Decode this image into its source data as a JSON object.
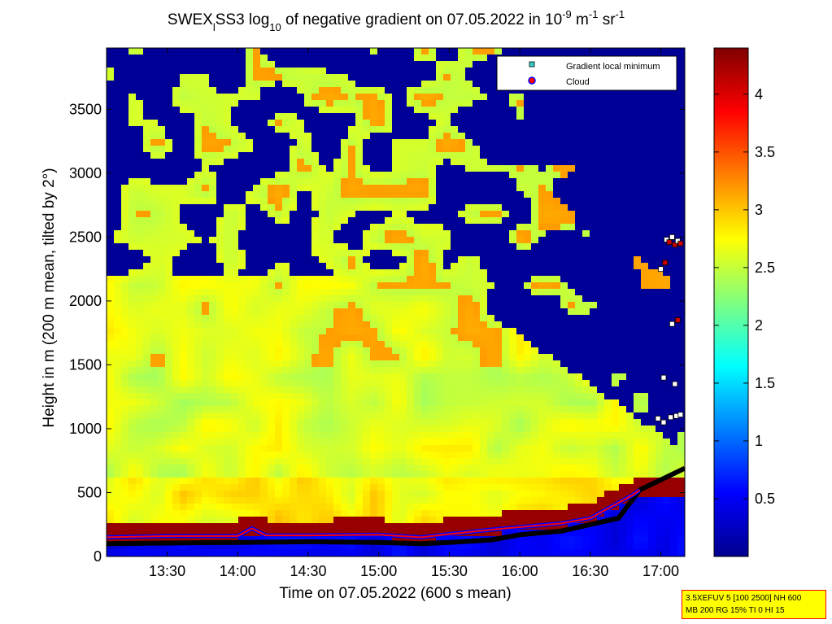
{
  "chart_data": {
    "type": "heatmap",
    "title_parts": {
      "prefix": "SWEX",
      "subscript1": "l",
      "middle": "SS3 log",
      "subscript2": "10",
      "text": " of negative gradient on 07.05.2022 in 10",
      "sup1": "-9",
      "unit1": " m",
      "sup2": "-1",
      "unit2": " sr",
      "sup3": "-1"
    },
    "xlabel": "Time on 07.05.2022 (600 s mean)",
    "ylabel": "Height in m (200 m mean, tilted by 2°)",
    "x_ticks": [
      {
        "label": "13:30",
        "value": 13.5
      },
      {
        "label": "14:00",
        "value": 14.0
      },
      {
        "label": "14:30",
        "value": 14.5
      },
      {
        "label": "15:00",
        "value": 15.0
      },
      {
        "label": "15:30",
        "value": 15.5
      },
      {
        "label": "16:00",
        "value": 16.0
      },
      {
        "label": "16:30",
        "value": 16.5
      },
      {
        "label": "17:00",
        "value": 17.0
      }
    ],
    "xlim": [
      13.07,
      17.17
    ],
    "y_ticks": [
      {
        "label": "0",
        "value": 0
      },
      {
        "label": "500",
        "value": 500
      },
      {
        "label": "1000",
        "value": 1000
      },
      {
        "label": "1500",
        "value": 1500
      },
      {
        "label": "2000",
        "value": 2000
      },
      {
        "label": "2500",
        "value": 2500
      },
      {
        "label": "3000",
        "value": 3000
      },
      {
        "label": "3500",
        "value": 3500
      }
    ],
    "ylim": [
      0,
      3980
    ],
    "colorbar": {
      "ticks": [
        {
          "label": "0.5",
          "value": 0.5
        },
        {
          "label": "1",
          "value": 1
        },
        {
          "label": "1.5",
          "value": 1.5
        },
        {
          "label": "2",
          "value": 2
        },
        {
          "label": "2.5",
          "value": 2.5
        },
        {
          "label": "3",
          "value": 3
        },
        {
          "label": "3.5",
          "value": 3.5
        },
        {
          "label": "4",
          "value": 4
        }
      ],
      "range": [
        0,
        4.4
      ]
    },
    "legend": {
      "position": "top-right",
      "entries": [
        {
          "label": "Gradient local minimum",
          "marker": "square",
          "color": "#33cccc"
        },
        {
          "label": "Cloud",
          "marker": "circle",
          "color": "#ff0000",
          "edge": "#0000ff"
        }
      ]
    },
    "gradient_minimum_line": {
      "x": [
        13.07,
        13.5,
        14.0,
        14.5,
        15.0,
        15.3,
        15.5,
        15.8,
        16.0,
        16.3,
        16.5,
        16.7,
        16.85,
        17.0,
        17.17
      ],
      "y": [
        100,
        105,
        110,
        115,
        110,
        100,
        110,
        130,
        170,
        200,
        250,
        300,
        520,
        600,
        690
      ]
    },
    "cloud_line": {
      "x": [
        13.07,
        13.5,
        14.0,
        14.1,
        14.2,
        14.5,
        15.0,
        15.3,
        15.5,
        15.8,
        16.0,
        16.3,
        16.5,
        16.6,
        16.7,
        16.8,
        16.85
      ],
      "y": [
        150,
        160,
        160,
        220,
        165,
        165,
        170,
        150,
        175,
        210,
        230,
        260,
        300,
        360,
        420,
        480,
        520
      ]
    },
    "upper_markers": {
      "x": [
        17.04,
        17.06,
        17.08,
        17.1,
        17.12,
        17.14,
        17.0,
        17.03,
        17.08,
        17.12,
        16.98,
        17.02,
        17.07,
        17.11,
        17.14,
        17.02,
        17.1
      ],
      "y": [
        2480,
        2460,
        2500,
        2440,
        2470,
        2450,
        2250,
        2300,
        1820,
        1850,
        1080,
        1050,
        1090,
        1100,
        1110,
        1400,
        1350
      ],
      "color": [
        "#ffffff",
        "#cc0000",
        "#ffffff",
        "#cc0000",
        "#ffffff",
        "#cc0000",
        "#ffffff",
        "#cc0000",
        "#ffffff",
        "#cc0000",
        "#ffffff",
        "#ffffff",
        "#ffffff",
        "#ffffff",
        "#ffffff",
        "#ffffff",
        "#ffffff"
      ]
    },
    "background_fields": {
      "near_ground_band": {
        "y": [
          200,
          550
        ],
        "value": 4.3
      },
      "clear_region_start_x": 16.6,
      "noise_upper_levels": true
    }
  },
  "info_box": {
    "line1": "3.5XEFUV 5 [100 2500] NH 600",
    "line2": "MB 200 RG 15% TI 0 HI 15"
  }
}
